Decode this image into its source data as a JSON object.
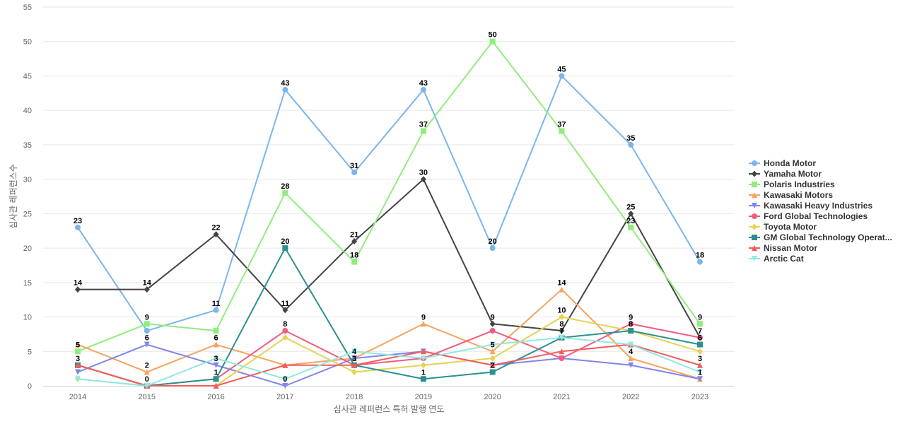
{
  "chart_data": {
    "type": "line",
    "xlabel": "심사관 레퍼런스 특허 발행 연도",
    "ylabel": "심사관 레퍼런스수",
    "ylim": [
      0,
      55
    ],
    "yticks": [
      0,
      5,
      10,
      15,
      20,
      25,
      30,
      35,
      40,
      45,
      50,
      55
    ],
    "grid": "horizontal",
    "legend_position": "right",
    "categories": [
      "2014",
      "2015",
      "2016",
      "2017",
      "2018",
      "2019",
      "2020",
      "2021",
      "2022",
      "2023"
    ],
    "series": [
      {
        "name": "Honda Motor",
        "color": "#7cb5ec",
        "marker": "circle",
        "values": [
          23,
          8,
          11,
          43,
          31,
          43,
          20,
          45,
          35,
          18
        ],
        "labels": [
          true,
          false,
          true,
          true,
          true,
          true,
          true,
          true,
          true,
          true
        ]
      },
      {
        "name": "Yamaha Motor",
        "color": "#434348",
        "marker": "diamond",
        "values": [
          14,
          14,
          22,
          11,
          21,
          30,
          9,
          8,
          25,
          7
        ],
        "labels": [
          true,
          true,
          true,
          true,
          true,
          true,
          true,
          true,
          true,
          true
        ]
      },
      {
        "name": "Polaris Industries",
        "color": "#90ed7d",
        "marker": "square",
        "values": [
          5,
          9,
          8,
          28,
          18,
          37,
          50,
          37,
          23,
          9
        ],
        "labels": [
          true,
          true,
          false,
          true,
          true,
          true,
          true,
          true,
          true,
          true
        ]
      },
      {
        "name": "Kawasaki Motors",
        "color": "#f7a35c",
        "marker": "triangle",
        "values": [
          6,
          2,
          6,
          3,
          4,
          9,
          5,
          14,
          4,
          1
        ],
        "labels": [
          false,
          true,
          true,
          false,
          false,
          true,
          true,
          true,
          true,
          false
        ]
      },
      {
        "name": "Kawasaki Heavy Industries",
        "color": "#8085e9",
        "marker": "triangle-down",
        "values": [
          2,
          6,
          3,
          0,
          4,
          5,
          3,
          4,
          3,
          1
        ],
        "labels": [
          false,
          true,
          true,
          true,
          true,
          false,
          false,
          false,
          false,
          true
        ]
      },
      {
        "name": "Ford Global Technologies",
        "color": "#f15c80",
        "marker": "circle",
        "values": [
          3,
          0,
          1,
          8,
          3,
          4,
          8,
          4,
          9,
          7
        ],
        "labels": [
          false,
          false,
          false,
          true,
          false,
          false,
          false,
          false,
          true,
          false
        ]
      },
      {
        "name": "Toyota Motor",
        "color": "#e4d354",
        "marker": "diamond",
        "values": [
          1,
          0,
          0,
          7,
          2,
          3,
          4,
          10,
          8,
          5
        ],
        "labels": [
          false,
          false,
          false,
          false,
          false,
          false,
          false,
          true,
          false,
          false
        ]
      },
      {
        "name": "GM Global Technology Operat...",
        "color": "#2b908f",
        "marker": "square",
        "values": [
          3,
          0,
          1,
          20,
          3,
          1,
          2,
          7,
          8,
          6
        ],
        "labels": [
          true,
          true,
          true,
          true,
          true,
          true,
          true,
          true,
          true,
          true
        ]
      },
      {
        "name": "Nissan Motor",
        "color": "#f45b5b",
        "marker": "triangle",
        "values": [
          3,
          0,
          0,
          3,
          3,
          5,
          3,
          5,
          6,
          3
        ],
        "labels": [
          false,
          false,
          false,
          false,
          false,
          false,
          false,
          false,
          false,
          true
        ]
      },
      {
        "name": "Arctic Cat",
        "color": "#91e8e1",
        "marker": "triangle-down",
        "values": [
          1,
          0,
          4,
          1,
          5,
          4,
          6,
          7,
          6,
          2
        ],
        "labels": [
          false,
          false,
          false,
          false,
          false,
          false,
          false,
          false,
          false,
          false
        ]
      }
    ]
  }
}
